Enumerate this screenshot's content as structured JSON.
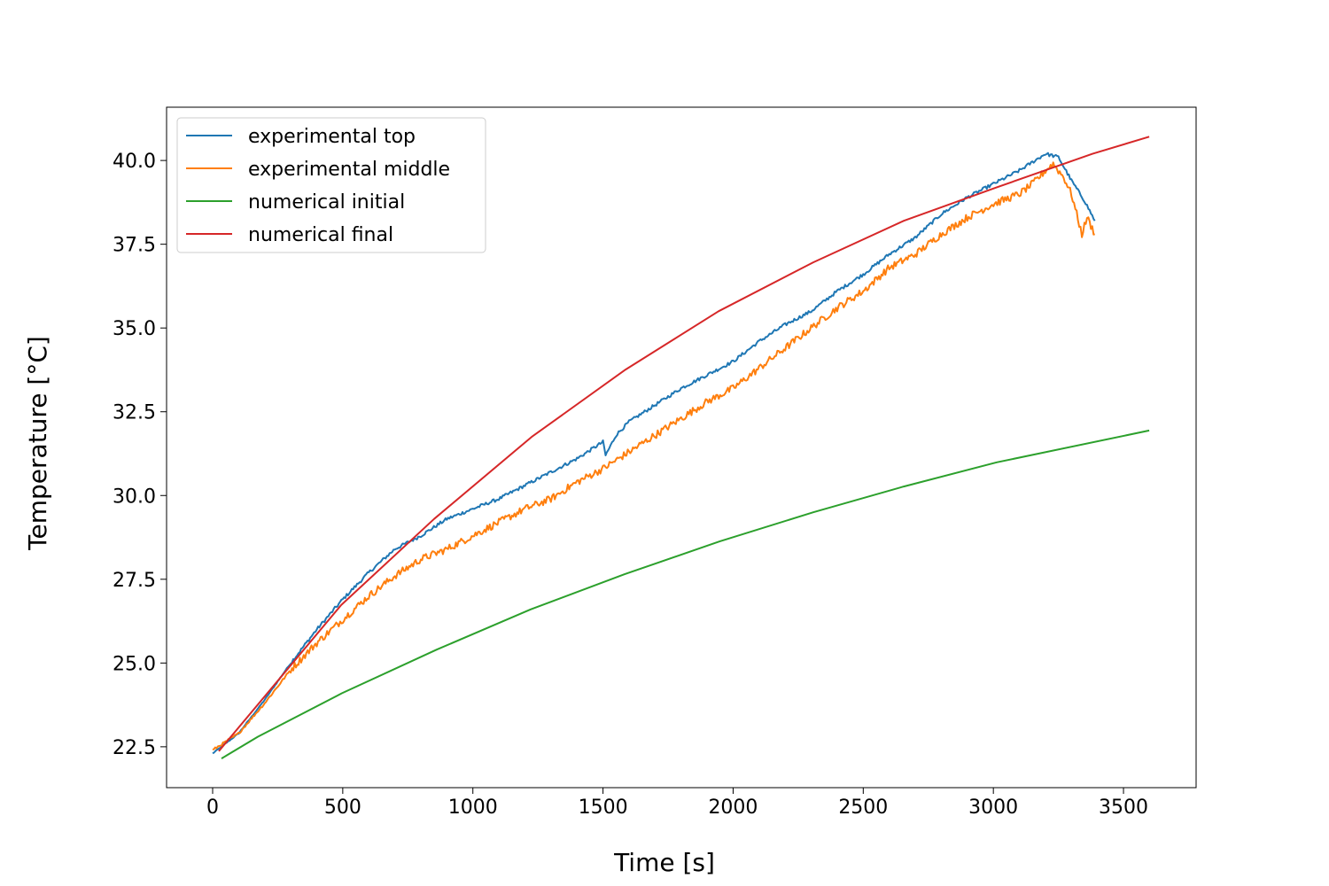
{
  "chart_data": {
    "type": "line",
    "title": "",
    "xlabel": "Time [s]",
    "ylabel": "Temperature [°C]",
    "xlim": [
      -177,
      3779
    ],
    "ylim": [
      21.28,
      41.59
    ],
    "grid": false,
    "legend_placement": "top-left",
    "x_ticks": [
      0,
      500,
      1000,
      1500,
      2000,
      2500,
      3000,
      3500
    ],
    "x_tick_labels": [
      "0",
      "500",
      "1000",
      "1500",
      "2000",
      "2500",
      "3000",
      "3500"
    ],
    "y_ticks": [
      22.5,
      25.0,
      27.5,
      30.0,
      32.5,
      35.0,
      37.5,
      40.0
    ],
    "y_tick_labels": [
      "22.5",
      "25.0",
      "27.5",
      "30.0",
      "32.5",
      "35.0",
      "37.5",
      "40.0"
    ],
    "series": [
      {
        "name": "experimental top",
        "color": "#1f77b4",
        "noisy": true,
        "x": [
          0,
          100,
          200,
          300,
          400,
          500,
          600,
          700,
          800,
          900,
          1000,
          1100,
          1200,
          1300,
          1400,
          1500,
          1510,
          1550,
          1600,
          1700,
          1800,
          1900,
          2000,
          2100,
          2200,
          2300,
          2400,
          2500,
          2600,
          2700,
          2800,
          2900,
          3000,
          3100,
          3200,
          3250,
          3300,
          3350,
          3390
        ],
        "y": [
          22.3,
          22.9,
          23.9,
          25.0,
          26.0,
          26.9,
          27.7,
          28.4,
          28.8,
          29.3,
          29.6,
          29.9,
          30.3,
          30.7,
          31.1,
          31.6,
          31.2,
          31.8,
          32.2,
          32.7,
          33.2,
          33.6,
          34.0,
          34.6,
          35.1,
          35.5,
          36.1,
          36.6,
          37.2,
          37.7,
          38.4,
          38.9,
          39.3,
          39.7,
          40.2,
          40.1,
          39.4,
          38.8,
          38.2
        ]
      },
      {
        "name": "experimental middle",
        "color": "#ff7f0e",
        "noisy": true,
        "x": [
          0,
          100,
          200,
          300,
          400,
          500,
          600,
          700,
          800,
          900,
          1000,
          1100,
          1200,
          1300,
          1400,
          1500,
          1600,
          1700,
          1800,
          1900,
          2000,
          2100,
          2200,
          2300,
          2400,
          2500,
          2600,
          2700,
          2800,
          2900,
          3000,
          3100,
          3150,
          3200,
          3230,
          3270,
          3300,
          3340,
          3360,
          3390
        ],
        "y": [
          22.4,
          22.9,
          23.8,
          24.8,
          25.6,
          26.3,
          27.0,
          27.6,
          28.1,
          28.4,
          28.8,
          29.2,
          29.6,
          29.9,
          30.4,
          30.8,
          31.3,
          31.8,
          32.3,
          32.8,
          33.2,
          33.8,
          34.4,
          35.0,
          35.6,
          36.1,
          36.8,
          37.2,
          37.8,
          38.3,
          38.7,
          39.0,
          39.3,
          39.7,
          39.9,
          39.5,
          39.0,
          37.8,
          38.3,
          37.8
        ]
      },
      {
        "name": "numerical initial",
        "color": "#2ca02c",
        "noisy": false,
        "x": [
          34,
          174,
          497,
          861,
          1222,
          1583,
          1948,
          2308,
          2656,
          3013,
          3599
        ],
        "y": [
          22.15,
          22.8,
          24.1,
          25.4,
          26.6,
          27.65,
          28.63,
          29.5,
          30.27,
          30.99,
          31.94
        ]
      },
      {
        "name": "numerical final",
        "color": "#d62728",
        "noisy": false,
        "x": [
          24,
          494,
          851,
          1226,
          1587,
          1944,
          2308,
          2656,
          3013,
          3381,
          3599
        ],
        "y": [
          22.37,
          26.73,
          29.3,
          31.75,
          33.76,
          35.5,
          36.96,
          38.2,
          39.2,
          40.2,
          40.71
        ]
      }
    ]
  }
}
